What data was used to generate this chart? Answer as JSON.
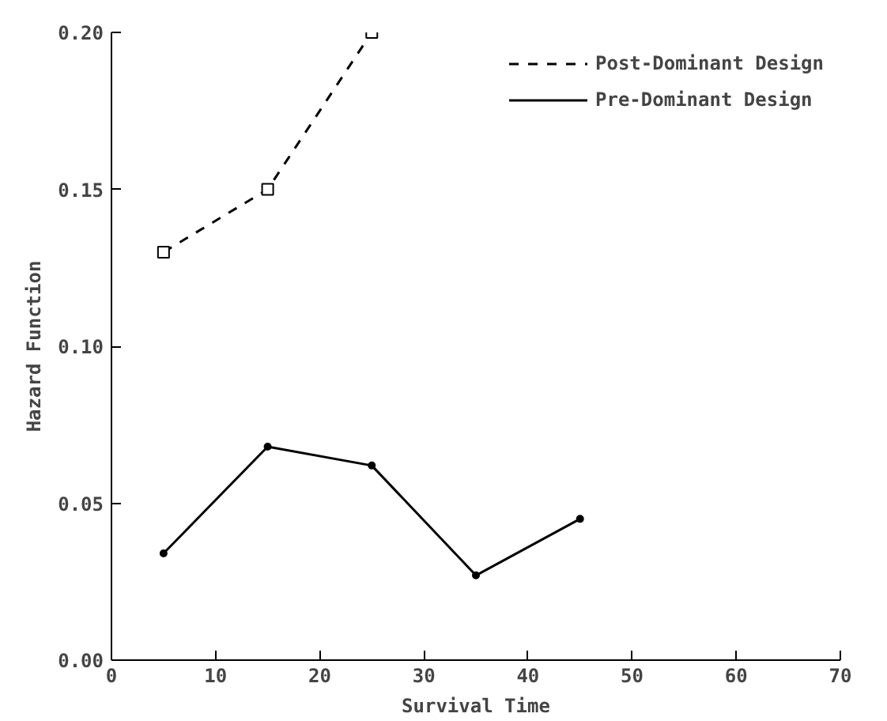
{
  "chart_data": {
    "type": "line",
    "xlabel": "Survival Time",
    "ylabel": "Hazard Function",
    "xlim": [
      0,
      70
    ],
    "xticks": [
      0,
      10,
      20,
      30,
      40,
      50,
      60,
      70
    ],
    "ylim": [
      0,
      0.2
    ],
    "yticks": [
      {
        "value": 0,
        "label": "0.00"
      },
      {
        "value": 0.05,
        "label": "0.05"
      },
      {
        "value": 0.1,
        "label": "0.10"
      },
      {
        "value": 0.15,
        "label": "0.15"
      },
      {
        "value": 0.2,
        "label": "0.20"
      }
    ],
    "grid": false,
    "legend": "top right",
    "series": [
      {
        "name": "Post-Dominant Design",
        "color": "#000000",
        "line_style": "dashed",
        "marker": "square",
        "x": [
          5,
          15,
          25
        ],
        "values": [
          0.13,
          0.15,
          0.2
        ]
      },
      {
        "name": "Pre-Dominant Design",
        "color": "#000000",
        "line_style": "solid",
        "marker": "circle",
        "x": [
          5,
          15,
          25,
          35,
          45
        ],
        "values": [
          0.034,
          0.068,
          0.062,
          0.027,
          0.045
        ]
      }
    ]
  }
}
